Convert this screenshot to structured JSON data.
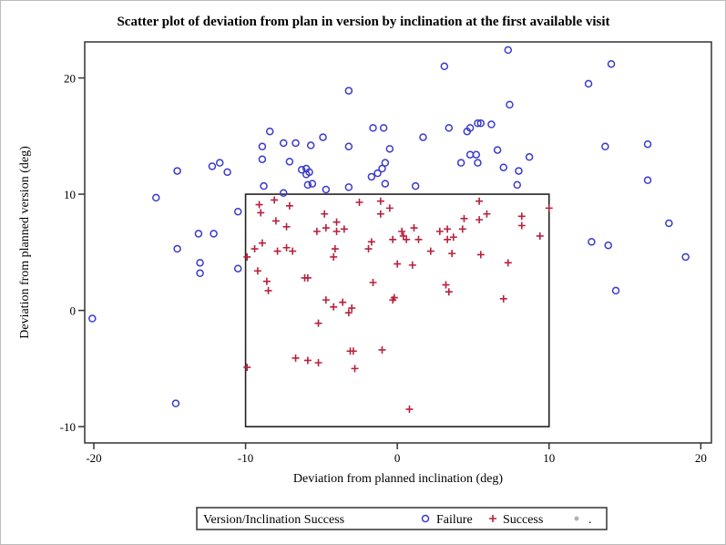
{
  "chart_data": {
    "type": "scatter",
    "title": "Scatter plot of deviation from plan in version by inclination at the first available visit",
    "xlabel": "Deviation from planned inclination (deg)",
    "ylabel": "Deviation from planned version (deg)",
    "xlim": [
      -20.6,
      20.7
    ],
    "ylim": [
      -11.4,
      23.1
    ],
    "xticks": [
      -20,
      -10,
      0,
      10,
      20
    ],
    "yticks": [
      -10,
      0,
      10,
      20
    ],
    "grid": false,
    "reference_box": {
      "x": [
        -10,
        10
      ],
      "y": [
        -10,
        10
      ]
    },
    "legend": {
      "position": "bottom",
      "title": "Version/Inclination Success",
      "entries": [
        {
          "label": "Failure",
          "marker": "circle",
          "color": "#3a3acc"
        },
        {
          "label": "Success",
          "marker": "plus",
          "color": "#b8203c"
        },
        {
          "label": ".",
          "marker": "dot",
          "color": "#b0b0b0"
        }
      ]
    },
    "series": [
      {
        "name": "Failure",
        "points": [
          [
            -20.1,
            -0.7
          ],
          [
            -15.9,
            9.7
          ],
          [
            -14.5,
            12.0
          ],
          [
            -14.5,
            5.3
          ],
          [
            -14.6,
            -8.0
          ],
          [
            -13.1,
            6.6
          ],
          [
            -13.0,
            4.1
          ],
          [
            -13.0,
            3.2
          ],
          [
            -12.2,
            12.4
          ],
          [
            -11.7,
            12.7
          ],
          [
            -11.2,
            11.9
          ],
          [
            -12.1,
            6.6
          ],
          [
            -10.5,
            8.5
          ],
          [
            -10.5,
            3.6
          ],
          [
            -8.4,
            15.4
          ],
          [
            -8.9,
            14.1
          ],
          [
            -8.9,
            13.0
          ],
          [
            -8.8,
            10.7
          ],
          [
            -7.5,
            14.4
          ],
          [
            -6.7,
            14.4
          ],
          [
            -7.1,
            12.8
          ],
          [
            -7.5,
            10.1
          ],
          [
            -5.7,
            14.2
          ],
          [
            -4.9,
            14.9
          ],
          [
            -6.3,
            12.1
          ],
          [
            -6.0,
            12.2
          ],
          [
            -5.8,
            11.9
          ],
          [
            -6.0,
            11.7
          ],
          [
            -5.9,
            10.8
          ],
          [
            -5.6,
            10.9
          ],
          [
            -4.7,
            10.4
          ],
          [
            -3.2,
            18.9
          ],
          [
            -3.2,
            14.1
          ],
          [
            -3.2,
            10.6
          ],
          [
            -1.6,
            15.7
          ],
          [
            -0.9,
            15.7
          ],
          [
            -1.7,
            11.5
          ],
          [
            -1.3,
            11.8
          ],
          [
            -1.0,
            12.2
          ],
          [
            -0.8,
            12.7
          ],
          [
            -0.8,
            10.9
          ],
          [
            -0.5,
            13.9
          ],
          [
            1.2,
            10.7
          ],
          [
            1.7,
            14.9
          ],
          [
            3.1,
            21.0
          ],
          [
            3.4,
            15.7
          ],
          [
            4.2,
            12.7
          ],
          [
            4.6,
            15.4
          ],
          [
            4.8,
            15.7
          ],
          [
            4.8,
            13.4
          ],
          [
            5.2,
            13.4
          ],
          [
            5.3,
            16.1
          ],
          [
            5.5,
            16.1
          ],
          [
            5.3,
            12.7
          ],
          [
            6.2,
            16.0
          ],
          [
            6.6,
            13.8
          ],
          [
            7.0,
            12.3
          ],
          [
            7.3,
            22.4
          ],
          [
            7.4,
            17.7
          ],
          [
            8.0,
            12.0
          ],
          [
            7.9,
            10.8
          ],
          [
            8.7,
            13.2
          ],
          [
            12.6,
            19.5
          ],
          [
            14.1,
            21.2
          ],
          [
            13.7,
            14.1
          ],
          [
            16.5,
            14.3
          ],
          [
            16.5,
            11.2
          ],
          [
            12.8,
            5.9
          ],
          [
            13.9,
            5.6
          ],
          [
            17.9,
            7.5
          ],
          [
            19.0,
            4.6
          ],
          [
            14.4,
            1.7
          ]
        ]
      },
      {
        "name": "Success",
        "points": [
          [
            -9.1,
            9.1
          ],
          [
            -9.0,
            8.4
          ],
          [
            -8.1,
            9.5
          ],
          [
            -7.1,
            9.0
          ],
          [
            -8.0,
            7.7
          ],
          [
            -7.3,
            7.2
          ],
          [
            -4.8,
            8.3
          ],
          [
            -5.3,
            6.8
          ],
          [
            -4.7,
            7.1
          ],
          [
            -4.0,
            7.6
          ],
          [
            -4.0,
            6.8
          ],
          [
            -3.5,
            7.0
          ],
          [
            -2.5,
            9.3
          ],
          [
            -1.1,
            9.4
          ],
          [
            -1.1,
            8.3
          ],
          [
            -0.5,
            8.8
          ],
          [
            -9.4,
            5.3
          ],
          [
            -8.9,
            5.8
          ],
          [
            -7.9,
            5.1
          ],
          [
            -7.3,
            5.4
          ],
          [
            -6.9,
            5.1
          ],
          [
            -9.9,
            4.6
          ],
          [
            -9.2,
            3.4
          ],
          [
            -8.6,
            2.5
          ],
          [
            -8.5,
            1.7
          ],
          [
            -6.1,
            2.8
          ],
          [
            -5.9,
            2.8
          ],
          [
            -4.1,
            5.3
          ],
          [
            -4.2,
            4.6
          ],
          [
            -4.7,
            0.9
          ],
          [
            -4.2,
            0.3
          ],
          [
            -3.6,
            0.7
          ],
          [
            -3.0,
            0.2
          ],
          [
            -3.2,
            -0.2
          ],
          [
            -5.2,
            -1.1
          ],
          [
            -1.9,
            5.3
          ],
          [
            -1.7,
            5.9
          ],
          [
            -1.6,
            2.4
          ],
          [
            -0.3,
            6.1
          ],
          [
            0.0,
            4.0
          ],
          [
            -0.3,
            0.9
          ],
          [
            -0.2,
            1.1
          ],
          [
            0.3,
            6.8
          ],
          [
            0.4,
            6.4
          ],
          [
            0.6,
            6.1
          ],
          [
            1.1,
            7.1
          ],
          [
            1.4,
            6.1
          ],
          [
            1.0,
            3.9
          ],
          [
            2.2,
            5.1
          ],
          [
            2.8,
            6.8
          ],
          [
            3.3,
            7.0
          ],
          [
            3.3,
            6.1
          ],
          [
            3.7,
            6.3
          ],
          [
            3.6,
            4.9
          ],
          [
            4.3,
            7.0
          ],
          [
            4.4,
            7.9
          ],
          [
            5.4,
            9.4
          ],
          [
            5.4,
            7.8
          ],
          [
            5.9,
            8.3
          ],
          [
            5.5,
            4.8
          ],
          [
            8.2,
            8.1
          ],
          [
            8.2,
            7.3
          ],
          [
            9.4,
            6.4
          ],
          [
            7.3,
            4.1
          ],
          [
            10.0,
            8.8
          ],
          [
            3.2,
            2.2
          ],
          [
            3.4,
            1.6
          ],
          [
            7.0,
            1.0
          ],
          [
            -6.7,
            -4.1
          ],
          [
            -5.9,
            -4.3
          ],
          [
            -5.2,
            -4.5
          ],
          [
            -3.1,
            -3.5
          ],
          [
            -2.9,
            -3.5
          ],
          [
            -2.8,
            -5.0
          ],
          [
            -1.0,
            -3.4
          ],
          [
            -9.9,
            -4.9
          ],
          [
            0.8,
            -8.5
          ]
        ]
      }
    ]
  }
}
